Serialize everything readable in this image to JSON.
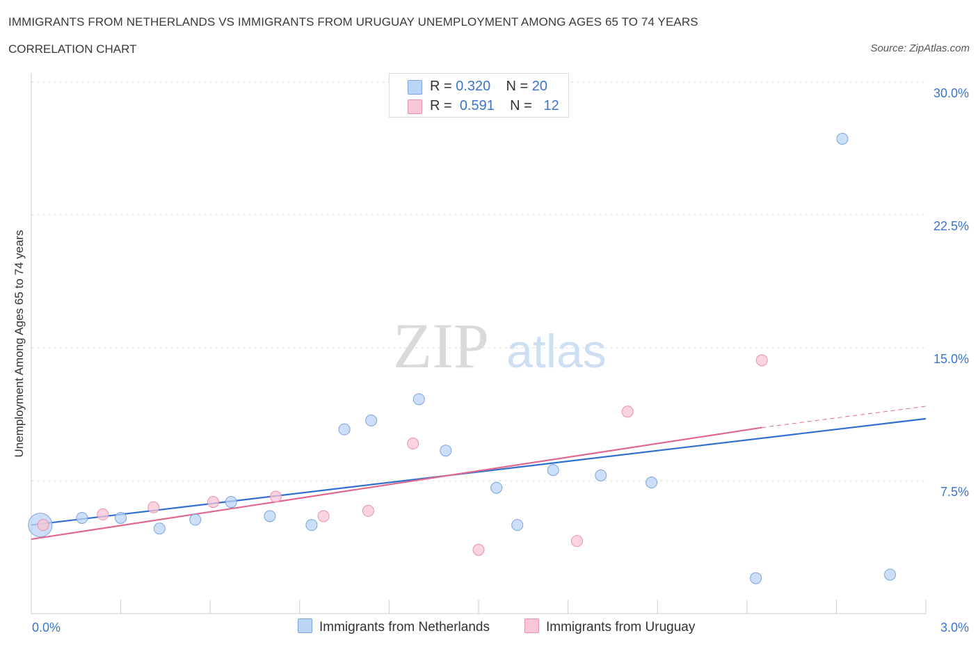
{
  "header": {
    "title": "IMMIGRANTS FROM NETHERLANDS VS IMMIGRANTS FROM URUGUAY UNEMPLOYMENT AMONG AGES 65 TO 74 YEARS",
    "subtitle": "CORRELATION CHART",
    "source": "Source: ZipAtlas.com"
  },
  "watermark": {
    "zip": "ZIP",
    "atlas": "atlas"
  },
  "legend": {
    "rows": [
      {
        "r_label": "R = ",
        "r_value": "0.320",
        "n_label": "N = ",
        "n_value": "20"
      },
      {
        "r_label": "R = ",
        "r_value": "0.591",
        "n_label": "N = ",
        "n_value": "12"
      }
    ]
  },
  "colors": {
    "netherlands_fill": "#bcd4f5",
    "netherlands_stroke": "#7aa3dc",
    "netherlands_line": "#2f6fce",
    "uruguay_fill": "#f8c6d6",
    "uruguay_stroke": "#e891ad",
    "uruguay_line": "#e0688f",
    "axis_text": "#3b75c9",
    "grid": "#dddddd"
  },
  "chart_data": {
    "type": "scatter",
    "title": "IMMIGRANTS FROM NETHERLANDS VS IMMIGRANTS FROM URUGUAY UNEMPLOYMENT AMONG AGES 65 TO 74 YEARS",
    "xlabel": "",
    "ylabel": "Unemployment Among Ages 65 to 74 years",
    "xlim": [
      0,
      3.0
    ],
    "ylim": [
      0,
      30.0
    ],
    "x_tick_labels": [
      "0.0%",
      "3.0%"
    ],
    "y_ticks": [
      7.5,
      15.0,
      22.5,
      30.0
    ],
    "y_tick_labels": [
      "7.5%",
      "15.0%",
      "22.5%",
      "30.0%"
    ],
    "grid": "horizontal dashed",
    "legend_position": "top-center",
    "series": [
      {
        "name": "Immigrants from Netherlands",
        "points": [
          {
            "x": 0.03,
            "y": 5.0,
            "big": true
          },
          {
            "x": 0.17,
            "y": 5.4
          },
          {
            "x": 0.3,
            "y": 5.4
          },
          {
            "x": 0.43,
            "y": 4.8
          },
          {
            "x": 0.55,
            "y": 5.3
          },
          {
            "x": 0.67,
            "y": 6.3
          },
          {
            "x": 0.8,
            "y": 5.5
          },
          {
            "x": 0.94,
            "y": 5.0
          },
          {
            "x": 1.05,
            "y": 10.4
          },
          {
            "x": 1.14,
            "y": 10.9
          },
          {
            "x": 1.3,
            "y": 12.1
          },
          {
            "x": 1.39,
            "y": 9.2
          },
          {
            "x": 1.56,
            "y": 7.1
          },
          {
            "x": 1.63,
            "y": 5.0
          },
          {
            "x": 1.75,
            "y": 8.1
          },
          {
            "x": 1.91,
            "y": 7.8
          },
          {
            "x": 2.08,
            "y": 7.4
          },
          {
            "x": 2.43,
            "y": 2.0
          },
          {
            "x": 2.72,
            "y": 26.8
          },
          {
            "x": 2.88,
            "y": 2.2
          }
        ],
        "trend": {
          "x0": 0.0,
          "y0": 5.0,
          "x1": 3.0,
          "y1": 11.0
        }
      },
      {
        "name": "Immigrants from Uruguay",
        "points": [
          {
            "x": 0.04,
            "y": 5.0
          },
          {
            "x": 0.24,
            "y": 5.6
          },
          {
            "x": 0.41,
            "y": 6.0
          },
          {
            "x": 0.61,
            "y": 6.3
          },
          {
            "x": 0.82,
            "y": 6.6
          },
          {
            "x": 0.98,
            "y": 5.5
          },
          {
            "x": 1.13,
            "y": 5.8
          },
          {
            "x": 1.28,
            "y": 9.6
          },
          {
            "x": 1.5,
            "y": 3.6
          },
          {
            "x": 1.83,
            "y": 4.1
          },
          {
            "x": 2.0,
            "y": 11.4
          },
          {
            "x": 2.45,
            "y": 14.3
          }
        ],
        "trend": {
          "x0": 0.0,
          "y0": 4.2,
          "x1": 2.45,
          "y1": 10.5
        },
        "trend_extension": {
          "x0": 2.45,
          "y0": 10.5,
          "x1": 3.0,
          "y1": 11.7
        }
      }
    ]
  }
}
